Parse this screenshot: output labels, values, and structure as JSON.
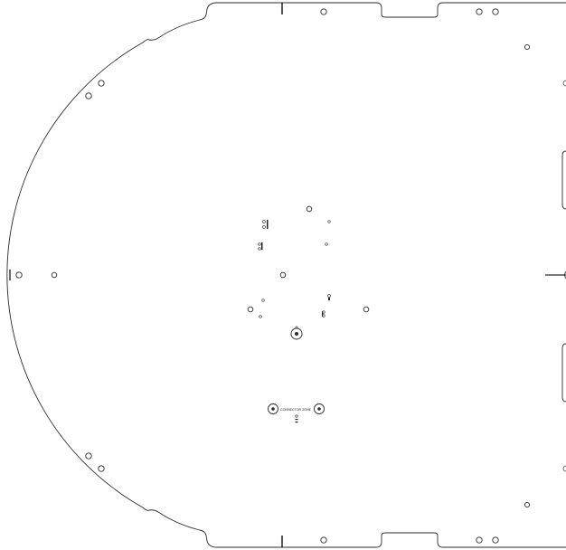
{
  "drawing": {
    "labels": {
      "connector_zone": "CONNECTOR ZONE"
    },
    "colors": {
      "line": "#2b2b2b",
      "background": "#ffffff"
    }
  }
}
